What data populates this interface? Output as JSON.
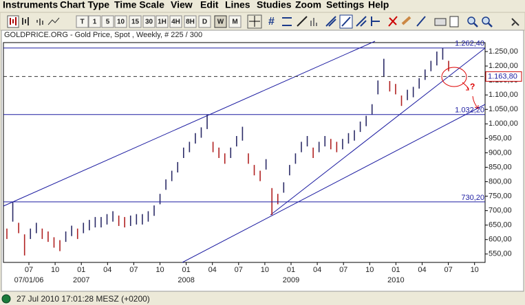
{
  "menu": [
    "Instruments",
    "Chart Type",
    "Time Scale",
    "View",
    "Edit",
    "Lines",
    "Studies",
    "Zoom",
    "Settings",
    "Help"
  ],
  "toolbar": {
    "timeframes": [
      "T",
      "1",
      "5",
      "10",
      "15",
      "30",
      "1H",
      "4H",
      "8H",
      "D",
      "W",
      "M"
    ],
    "selected": "W"
  },
  "chart_data": {
    "type": "ohlc",
    "title": "GOLDPRICE.ORG - Gold Price, Spot , Weekly, # 225 / 300",
    "color": "#2a2a66",
    "high": [
      638,
      730,
      658,
      618,
      638,
      658,
      638,
      628,
      608,
      598,
      628,
      648,
      638,
      658,
      668,
      678,
      678,
      688,
      698,
      683,
      678,
      683,
      688,
      688,
      698,
      718,
      758,
      808,
      838,
      868,
      918,
      938,
      968,
      988,
      1032,
      938,
      918,
      898,
      918,
      958,
      990,
      898,
      858,
      838,
      878,
      778,
      758,
      798,
      858,
      898,
      938,
      958,
      918,
      938,
      958,
      948,
      938,
      948,
      968,
      978,
      1008,
      1028,
      1068,
      1150,
      1225,
      1148,
      1138,
      1098,
      1118,
      1128,
      1158,
      1188,
      1218,
      1250,
      1262.4,
      1218
    ],
    "low": [
      602,
      662,
      622,
      545,
      602,
      622,
      602,
      592,
      572,
      560,
      592,
      612,
      602,
      622,
      632,
      642,
      642,
      652,
      662,
      647,
      642,
      647,
      652,
      652,
      662,
      682,
      722,
      772,
      802,
      832,
      882,
      902,
      932,
      952,
      982,
      902,
      882,
      862,
      882,
      922,
      942,
      862,
      822,
      802,
      842,
      685,
      722,
      762,
      822,
      862,
      902,
      922,
      882,
      902,
      922,
      912,
      902,
      912,
      932,
      942,
      972,
      992,
      1032,
      1102,
      1162,
      1112,
      1102,
      1062,
      1082,
      1092,
      1122,
      1152,
      1182,
      1202,
      1222,
      1182
    ],
    "ylim": [
      521,
      1281
    ],
    "yticks": [
      {
        "value": 550,
        "label": "550,00"
      },
      {
        "value": 600,
        "label": "600,00"
      },
      {
        "value": 650,
        "label": "650,00"
      },
      {
        "value": 700,
        "label": "700,00"
      },
      {
        "value": 750,
        "label": "750,00"
      },
      {
        "value": 800,
        "label": "800,00"
      },
      {
        "value": 850,
        "label": "850,00"
      },
      {
        "value": 900,
        "label": "900,00"
      },
      {
        "value": 950,
        "label": "950,00"
      },
      {
        "value": 1000,
        "label": "1.000,00"
      },
      {
        "value": 1050,
        "label": "1.050,00"
      },
      {
        "value": 1100,
        "label": "1.100,00"
      },
      {
        "value": 1150,
        "label": "1.150,00"
      },
      {
        "value": 1200,
        "label": "1.200,00"
      },
      {
        "value": 1250,
        "label": "1.250,00"
      }
    ],
    "levels": [
      {
        "value": 1262.4,
        "label": "1.262,40",
        "style": "solid"
      },
      {
        "value": 1163.8,
        "label": "1.163,80",
        "style": "dashed"
      },
      {
        "value": 1032.2,
        "label": "1.032,20",
        "style": "solid"
      },
      {
        "value": 730.2,
        "label": "730,20",
        "style": "solid"
      }
    ],
    "x_tick_labels": [
      "07",
      "10",
      "01",
      "04",
      "07",
      "10",
      "01",
      "04",
      "07",
      "10",
      "01",
      "04",
      "07",
      "10",
      "01",
      "04",
      "07",
      "10"
    ],
    "x_period_labels": [
      "07/01/06",
      "2007",
      "2008",
      "2009",
      "2010"
    ],
    "annotation": "?"
  },
  "status": "27 Jul 2010 17:01:28  MESZ (+0200)"
}
